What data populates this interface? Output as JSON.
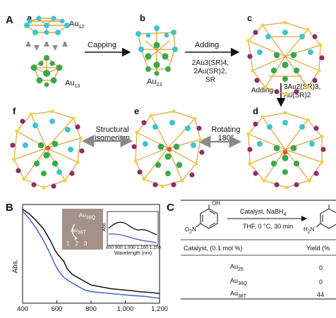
{
  "panel_a": {
    "letter": "A",
    "subs": [
      "a",
      "b",
      "c",
      "d",
      "e",
      "f"
    ],
    "au12": "Au",
    "au12_sub": "12",
    "au13": "Au",
    "au13_sub": "13",
    "au23": "Au",
    "au23_sub": "23",
    "capping": "Capping",
    "adding1": "Adding",
    "adding1_reagents": [
      "2Au3(SR)4,",
      "2Au(SR)2,",
      "SR"
    ],
    "adding2": "Adding",
    "adding2_reagents": [
      "3Au2(SR)3,",
      "Au(SR)2"
    ],
    "rotating": "Rotating",
    "rotating_deg": "180°",
    "structural": "Structural",
    "isomerism": "isomerism"
  },
  "panel_b": {
    "letter": "B",
    "ylabel": "Abs.",
    "inset_ylabel": "Abs.",
    "inset_xlabel": "Wavelength (nm)",
    "inset_ticks": [
      "800",
      "900",
      "1,000",
      "1,100",
      "1,200"
    ],
    "main_ticks": [
      "400",
      "600",
      "800",
      "1,000",
      "1,200"
    ],
    "photo_label_q": "Au",
    "photo_label_q_sub": "38Q",
    "photo_label_t": "Au",
    "photo_label_t_sub": "38T",
    "vial_numbers": [
      "1",
      "2",
      "3"
    ],
    "series_colors": [
      "#000000",
      "#3a57c4"
    ]
  },
  "panel_c": {
    "letter": "C",
    "reagent_line": "Catalyst, NaBH",
    "reagent_sub": "4",
    "conditions": "THF, 0 °C, 30 min",
    "oh": "OH",
    "o2n": "O",
    "o2n_sub": "2",
    "o2n_tail": "N",
    "h2n": "H",
    "h2n_sub": "2",
    "h2n_tail": "N",
    "col_catalyst": "Catalyst, (0.1 mol %)",
    "col_yield": "Yield (%",
    "rows": [
      {
        "cat": "Au",
        "sub": "25",
        "yield": "0"
      },
      {
        "cat": "Au",
        "sub": "38Q",
        "yield": "0"
      },
      {
        "cat": "Au",
        "sub": "38T",
        "yield": "44"
      }
    ]
  },
  "chart_data": {
    "type": "line",
    "xlabel": "",
    "ylabel": "Abs.",
    "xlim": [
      400,
      1200
    ],
    "x_ticks": [
      400,
      600,
      800,
      1000,
      1200
    ],
    "series": [
      {
        "color": "#000000",
        "x": [
          400,
          440,
          480,
          520,
          560,
          590,
          610,
          640,
          660,
          690,
          720,
          760,
          800,
          860,
          920,
          980,
          1040,
          1080,
          1120,
          1160,
          1200
        ],
        "y": [
          0.98,
          0.93,
          0.86,
          0.78,
          0.66,
          0.55,
          0.5,
          0.44,
          0.36,
          0.3,
          0.27,
          0.23,
          0.19,
          0.17,
          0.15,
          0.14,
          0.13,
          0.12,
          0.115,
          0.11,
          0.1
        ]
      },
      {
        "color": "#3a57c4",
        "x": [
          400,
          440,
          480,
          520,
          560,
          590,
          610,
          640,
          680,
          720,
          760,
          800,
          860,
          920,
          980,
          1040,
          1080,
          1120,
          1160,
          1200
        ],
        "y": [
          0.96,
          0.88,
          0.78,
          0.66,
          0.52,
          0.4,
          0.34,
          0.27,
          0.22,
          0.18,
          0.14,
          0.12,
          0.11,
          0.1,
          0.09,
          0.08,
          0.075,
          0.07,
          0.06,
          0.05
        ]
      }
    ]
  }
}
